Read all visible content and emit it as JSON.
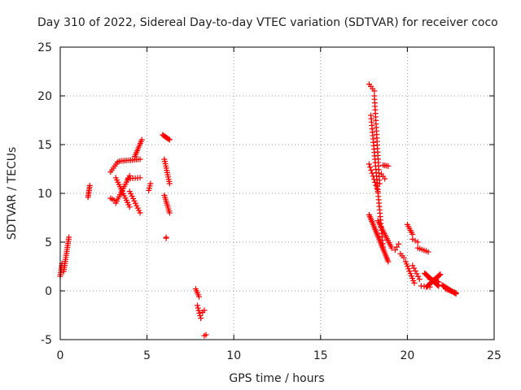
{
  "chart_data": {
    "type": "scatter",
    "title": "Day 310 of 2022, Sidereal Day-to-day VTEC variation (SDTVAR) for receiver coco",
    "xlabel": "GPS time / hours",
    "ylabel": "SDTVAR / TECUs",
    "xlim": [
      0,
      25
    ],
    "ylim": [
      -5,
      25
    ],
    "xticks": [
      0,
      5,
      10,
      15,
      20,
      25
    ],
    "yticks": [
      -5,
      0,
      5,
      10,
      15,
      20,
      25
    ],
    "grid": true,
    "marker": "+",
    "color": "#ff0000",
    "segments": [
      {
        "x0": 0.0,
        "y0": 1.5,
        "x1": 0.1,
        "y1": 2.8,
        "n": 8
      },
      {
        "x0": 0.2,
        "y0": 2.0,
        "x1": 0.5,
        "y1": 5.5,
        "n": 18
      },
      {
        "x0": 1.6,
        "y0": 9.6,
        "x1": 1.7,
        "y1": 10.8,
        "n": 8
      },
      {
        "x0": 2.9,
        "y0": 12.2,
        "x1": 3.3,
        "y1": 13.2,
        "n": 6
      },
      {
        "x0": 2.9,
        "y0": 9.5,
        "x1": 3.1,
        "y1": 9.3,
        "n": 3
      },
      {
        "x0": 3.2,
        "y0": 11.6,
        "x1": 4.0,
        "y1": 8.6,
        "n": 14
      },
      {
        "x0": 3.2,
        "y0": 9.0,
        "x1": 4.0,
        "y1": 11.8,
        "n": 14
      },
      {
        "x0": 3.4,
        "y0": 13.3,
        "x1": 4.6,
        "y1": 13.5,
        "n": 12
      },
      {
        "x0": 3.9,
        "y0": 11.5,
        "x1": 4.6,
        "y1": 11.6,
        "n": 6
      },
      {
        "x0": 4.0,
        "y0": 10.2,
        "x1": 4.6,
        "y1": 8.0,
        "n": 10
      },
      {
        "x0": 4.3,
        "y0": 13.8,
        "x1": 4.7,
        "y1": 15.5,
        "n": 10
      },
      {
        "x0": 5.1,
        "y0": 10.3,
        "x1": 5.2,
        "y1": 11.0,
        "n": 4
      },
      {
        "x0": 5.9,
        "y0": 16.0,
        "x1": 6.3,
        "y1": 15.5,
        "n": 8
      },
      {
        "x0": 6.0,
        "y0": 13.5,
        "x1": 6.3,
        "y1": 11.0,
        "n": 12
      },
      {
        "x0": 6.0,
        "y0": 9.8,
        "x1": 6.3,
        "y1": 8.0,
        "n": 10
      },
      {
        "x0": 6.1,
        "y0": 5.5,
        "x1": 6.1,
        "y1": 5.4,
        "n": 2
      },
      {
        "x0": 7.8,
        "y0": 0.2,
        "x1": 8.0,
        "y1": -0.6,
        "n": 5
      },
      {
        "x0": 7.9,
        "y0": -1.5,
        "x1": 8.1,
        "y1": -2.8,
        "n": 6
      },
      {
        "x0": 8.2,
        "y0": -2.2,
        "x1": 8.3,
        "y1": -2.0,
        "n": 2
      },
      {
        "x0": 8.3,
        "y0": -4.6,
        "x1": 8.4,
        "y1": -4.5,
        "n": 2
      },
      {
        "x0": 17.8,
        "y0": 21.2,
        "x1": 18.1,
        "y1": 20.5,
        "n": 4
      },
      {
        "x0": 17.9,
        "y0": 18.0,
        "x1": 18.6,
        "y1": 4.5,
        "n": 40
      },
      {
        "x0": 18.1,
        "y0": 20.0,
        "x1": 18.4,
        "y1": 11.0,
        "n": 26
      },
      {
        "x0": 17.8,
        "y0": 13.0,
        "x1": 18.3,
        "y1": 10.2,
        "n": 10
      },
      {
        "x0": 17.8,
        "y0": 7.8,
        "x1": 18.9,
        "y1": 3.0,
        "n": 30
      },
      {
        "x0": 18.3,
        "y0": 7.2,
        "x1": 19.1,
        "y1": 4.4,
        "n": 16
      },
      {
        "x0": 18.6,
        "y0": 12.9,
        "x1": 18.9,
        "y1": 12.8,
        "n": 4
      },
      {
        "x0": 18.5,
        "y0": 12.0,
        "x1": 18.7,
        "y1": 11.5,
        "n": 3
      },
      {
        "x0": 19.3,
        "y0": 4.2,
        "x1": 19.5,
        "y1": 4.8,
        "n": 3
      },
      {
        "x0": 19.6,
        "y0": 3.8,
        "x1": 19.8,
        "y1": 3.4,
        "n": 3
      },
      {
        "x0": 19.9,
        "y0": 3.0,
        "x1": 20.4,
        "y1": 0.8,
        "n": 10
      },
      {
        "x0": 20.0,
        "y0": 6.8,
        "x1": 20.3,
        "y1": 5.8,
        "n": 6
      },
      {
        "x0": 20.3,
        "y0": 5.3,
        "x1": 20.6,
        "y1": 5.0,
        "n": 3
      },
      {
        "x0": 20.3,
        "y0": 2.6,
        "x1": 20.7,
        "y1": 1.2,
        "n": 6
      },
      {
        "x0": 20.6,
        "y0": 4.4,
        "x1": 21.2,
        "y1": 4.0,
        "n": 6
      },
      {
        "x0": 20.8,
        "y0": 0.5,
        "x1": 21.3,
        "y1": 0.4,
        "n": 4
      },
      {
        "x0": 21.0,
        "y0": 1.8,
        "x1": 21.8,
        "y1": 0.5,
        "n": 22
      },
      {
        "x0": 21.1,
        "y0": 0.4,
        "x1": 21.9,
        "y1": 1.7,
        "n": 22
      },
      {
        "x0": 21.3,
        "y0": 1.2,
        "x1": 21.8,
        "y1": 0.9,
        "n": 12
      },
      {
        "x0": 22.0,
        "y0": 0.6,
        "x1": 22.8,
        "y1": -0.3,
        "n": 14
      },
      {
        "x0": 22.2,
        "y0": 0.2,
        "x1": 22.8,
        "y1": -0.2,
        "n": 8
      }
    ]
  }
}
